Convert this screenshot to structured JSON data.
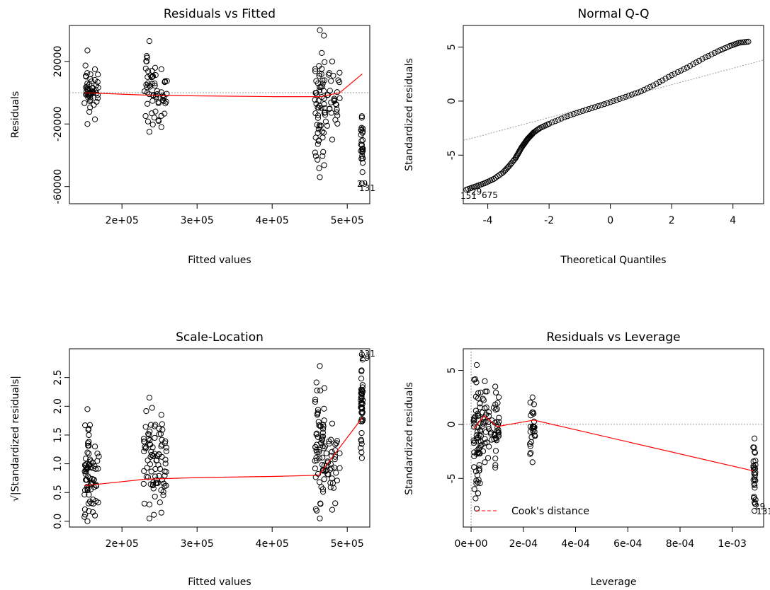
{
  "colors": {
    "points": "#000000",
    "smooth": "#ff0000",
    "reference": "#9a9a9a"
  },
  "chart_data": [
    {
      "type": "scatter",
      "title": "Residuals vs Fitted",
      "xlabel": "Fitted values",
      "ylabel": "Residuals",
      "xlim": [
        130000,
        530000
      ],
      "ylim": [
        -71000,
        43000
      ],
      "x_ticks": [
        200000,
        300000,
        400000,
        500000
      ],
      "x_tick_labels": [
        "2e+05",
        "3e+05",
        "4e+05",
        "5e+05"
      ],
      "y_ticks": [
        20000,
        -20000,
        -60000
      ],
      "y_tick_labels": [
        "20000",
        "-20000",
        "-60000"
      ],
      "reference_line": {
        "y": 0,
        "style": "dotted"
      },
      "clusters": [
        {
          "x_range": [
            150000,
            158000
          ],
          "y_range": [
            -20000,
            27000
          ]
        },
        {
          "x_range": [
            158000,
            170000
          ],
          "y_range": [
            -17000,
            15000
          ]
        },
        {
          "x_range": [
            228000,
            245000
          ],
          "y_range": [
            -25000,
            33000
          ]
        },
        {
          "x_range": [
            245000,
            260000
          ],
          "y_range": [
            -22000,
            15000
          ]
        },
        {
          "x_range": [
            457000,
            470000
          ],
          "y_range": [
            -54000,
            40000
          ]
        },
        {
          "x_range": [
            470000,
            490000
          ],
          "y_range": [
            -30000,
            20000
          ]
        },
        {
          "x_range": [
            518000,
            521000
          ],
          "y_range": [
            -58000,
            -15000
          ]
        }
      ],
      "smooth_line": {
        "x": [
          150000,
          230000,
          300000,
          400000,
          465000,
          490000,
          520000
        ],
        "y": [
          0,
          -1500,
          -2000,
          -2500,
          -2500,
          0,
          12000
        ]
      },
      "point_labels": [
        "29",
        "131"
      ]
    },
    {
      "type": "scatter",
      "title": "Normal Q-Q",
      "xlabel": "Theoretical Quantiles",
      "ylabel": "Standardized residuals",
      "xlim": [
        -4.8,
        5.0
      ],
      "ylim": [
        -9.5,
        7.0
      ],
      "x_ticks": [
        -4,
        -2,
        0,
        2,
        4
      ],
      "x_tick_labels": [
        "-4",
        "-2",
        "0",
        "2",
        "4"
      ],
      "y_ticks": [
        5,
        0,
        -5
      ],
      "y_tick_labels": [
        "5",
        "0",
        "-5"
      ],
      "reference_line": {
        "slope": 0.76,
        "intercept": 0.0,
        "style": "dotted"
      },
      "qq_curve": {
        "x": [
          -4.7,
          -4.4,
          -4.1,
          -3.8,
          -3.5,
          -3.3,
          -3.1,
          -3.0,
          -2.9,
          -2.8,
          -2.7,
          -2.6,
          -2.5,
          -2.3,
          -2.0,
          -1.5,
          -1.0,
          -0.5,
          0.0,
          0.5,
          1.0,
          1.5,
          2.0,
          2.5,
          3.0,
          3.5,
          3.9,
          4.2,
          4.5
        ],
        "y": [
          -8.2,
          -7.9,
          -7.6,
          -7.2,
          -6.6,
          -6.0,
          -5.3,
          -4.8,
          -4.3,
          -3.9,
          -3.5,
          -3.2,
          -2.9,
          -2.5,
          -2.1,
          -1.5,
          -1.0,
          -0.55,
          -0.1,
          0.4,
          0.9,
          1.6,
          2.4,
          3.1,
          3.9,
          4.6,
          5.1,
          5.4,
          5.5
        ]
      },
      "point_labels": [
        "151",
        "29",
        "675"
      ]
    },
    {
      "type": "scatter",
      "title": "Scale-Location",
      "xlabel": "Fitted values",
      "ylabel": "√|Standardized residuals|",
      "xlim": [
        130000,
        530000
      ],
      "ylim": [
        -0.1,
        3.0
      ],
      "x_ticks": [
        200000,
        300000,
        400000,
        500000
      ],
      "x_tick_labels": [
        "2e+05",
        "3e+05",
        "4e+05",
        "5e+05"
      ],
      "y_ticks": [
        0.0,
        0.5,
        1.0,
        1.5,
        2.0,
        2.5
      ],
      "y_tick_labels": [
        "0.0",
        "0.5",
        "1.0",
        "1.5",
        "2.0",
        "2.5"
      ],
      "clusters": [
        {
          "x_range": [
            150000,
            158000
          ],
          "y_range": [
            0.0,
            1.95
          ]
        },
        {
          "x_range": [
            158000,
            170000
          ],
          "y_range": [
            0.1,
            1.3
          ]
        },
        {
          "x_range": [
            228000,
            245000
          ],
          "y_range": [
            0.05,
            2.15
          ]
        },
        {
          "x_range": [
            245000,
            260000
          ],
          "y_range": [
            0.15,
            1.85
          ]
        },
        {
          "x_range": [
            457000,
            470000
          ],
          "y_range": [
            0.05,
            2.7
          ]
        },
        {
          "x_range": [
            470000,
            490000
          ],
          "y_range": [
            0.2,
            1.7
          ]
        },
        {
          "x_range": [
            518000,
            521000
          ],
          "y_range": [
            1.1,
            2.9
          ]
        }
      ],
      "smooth_line": {
        "x": [
          150000,
          230000,
          300000,
          400000,
          462000,
          520000
        ],
        "y": [
          0.62,
          0.73,
          0.76,
          0.78,
          0.8,
          1.8
        ]
      },
      "point_labels": [
        "131",
        "29"
      ]
    },
    {
      "type": "scatter",
      "title": "Residuals vs Leverage",
      "xlabel": "Leverage",
      "ylabel": "Standardized residuals",
      "xlim": [
        -3e-05,
        0.00112
      ],
      "ylim": [
        -9.5,
        7.0
      ],
      "x_ticks": [
        0.0,
        0.0002,
        0.0004,
        0.0006,
        0.0008,
        0.001
      ],
      "x_tick_labels": [
        "0e+00",
        "2e-04",
        "4e-04",
        "6e-04",
        "8e-04",
        "1e-03"
      ],
      "y_ticks": [
        5,
        0,
        -5
      ],
      "y_tick_labels": [
        "5",
        "0",
        "-5"
      ],
      "reference_line": {
        "y": 0,
        "style": "dotted"
      },
      "clusters": [
        {
          "x_range": [
            8e-06,
            3.5e-05
          ],
          "y_range": [
            -7.8,
            5.5
          ]
        },
        {
          "x_range": [
            3.5e-05,
            7e-05
          ],
          "y_range": [
            -3.5,
            4.0
          ]
        },
        {
          "x_range": [
            7.5e-05,
            0.00011
          ],
          "y_range": [
            -4.0,
            3.5
          ]
        },
        {
          "x_range": [
            0.000225,
            0.000245
          ],
          "y_range": [
            -3.5,
            2.5
          ]
        },
        {
          "x_range": [
            0.00108,
            0.00109
          ],
          "y_range": [
            -8.0,
            -1.3
          ]
        }
      ],
      "smooth_line": {
        "x": [
          1e-05,
          5e-05,
          0.0001,
          0.00024,
          0.00108
        ],
        "y": [
          -0.4,
          0.8,
          -0.2,
          0.4,
          -4.3
        ]
      },
      "legend": {
        "label": "Cook's distance",
        "position": "bottom-left",
        "style": "dashed"
      },
      "point_labels": [
        "29",
        "131"
      ]
    }
  ]
}
